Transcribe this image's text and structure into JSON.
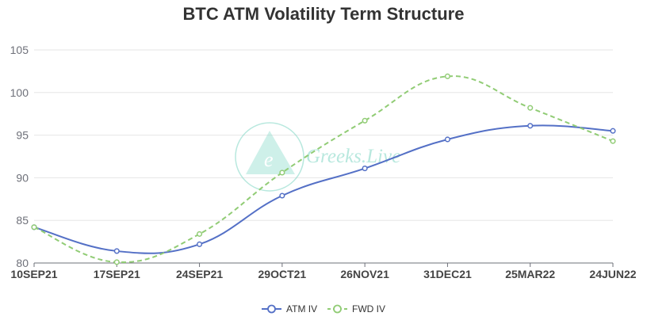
{
  "chart_data": {
    "type": "line",
    "title": "BTC ATM Volatility Term Structure",
    "xlabel": "",
    "ylabel": "",
    "categories": [
      "10SEP21",
      "17SEP21",
      "24SEP21",
      "29OCT21",
      "26NOV21",
      "31DEC21",
      "25MAR22",
      "24JUN22"
    ],
    "ylim": [
      80,
      105
    ],
    "yticks": [
      80,
      85,
      90,
      95,
      100,
      105
    ],
    "grid": true,
    "legend_position": "bottom-center",
    "series": [
      {
        "name": "ATM IV",
        "values": [
          84.2,
          81.4,
          82.2,
          87.9,
          91.1,
          94.5,
          96.1,
          95.5
        ],
        "color": "#5470c6",
        "style": "solid"
      },
      {
        "name": "FWD IV",
        "values": [
          84.2,
          80.1,
          83.4,
          90.6,
          96.7,
          101.9,
          98.2,
          94.3
        ],
        "color": "#91cc75",
        "style": "dashed"
      }
    ]
  },
  "watermark": {
    "text": "Greeks.Live",
    "logo_text": "e"
  },
  "colors": {
    "grid": "#e6e6e6",
    "axis": "#6e7079",
    "title": "#333333",
    "watermark": "#7fd6c4"
  }
}
